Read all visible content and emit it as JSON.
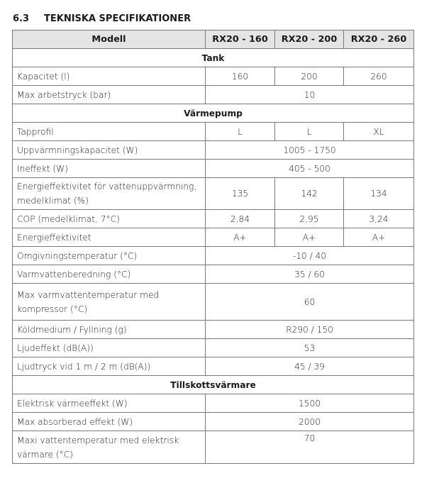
{
  "section_number": "6.3",
  "section_title": "TEKNISKA SPECIFIKATIONER",
  "table": {
    "header": [
      "Modell",
      "RX20 - 160",
      "RX20 - 200",
      "RX20 - 260"
    ],
    "rows": [
      {
        "section": "Tank"
      },
      {
        "label": "Kapacitet (l)",
        "values": [
          "160",
          "200",
          "260"
        ]
      },
      {
        "label": "Max arbetstryck (bar)",
        "value": "10"
      },
      {
        "section": "Värmepump"
      },
      {
        "label": "Tapprofil",
        "values": [
          "L",
          "L",
          "XL"
        ]
      },
      {
        "label": "Uppvärmningskapacitet (W)",
        "value": "1005 - 1750"
      },
      {
        "label": "Ineffekt (W)",
        "value": "405 - 500"
      },
      {
        "label": "Energieffektivitet för vattenuppvärmning, medelklimat (%)",
        "values": [
          "135",
          "142",
          "134"
        ]
      },
      {
        "label": "COP (medelklimat, 7°C)",
        "values": [
          "2,84",
          "2,95",
          "3,24"
        ]
      },
      {
        "label": "Energieffektivitet",
        "values": [
          "A+",
          "A+",
          "A+"
        ]
      },
      {
        "label": "Omgivningstemperatur (°C)",
        "value": "-10 / 40"
      },
      {
        "label": "Varmvattenberedning (°C)",
        "value": "35 / 60"
      },
      {
        "label": "Max varmvattentemperatur med kompressor (°C)",
        "value": "60"
      },
      {
        "label": "Köldmedium / Fyllning (g)",
        "value": "R290 / 150"
      },
      {
        "label": "Ljudeffekt (dB(A))",
        "value": "53"
      },
      {
        "label": "Ljudtryck vid 1 m / 2 m (dB(A))",
        "value": "45 / 39"
      },
      {
        "section": "Tillskottsvärmare"
      },
      {
        "label": "Elektrisk värmeeffekt (W)",
        "value": "1500"
      },
      {
        "label": "Max absorberad effekt (W)",
        "value": "2000"
      },
      {
        "label": "Maxi vattentemperatur med elektrisk värmare (°C)",
        "value": "70"
      }
    ]
  }
}
